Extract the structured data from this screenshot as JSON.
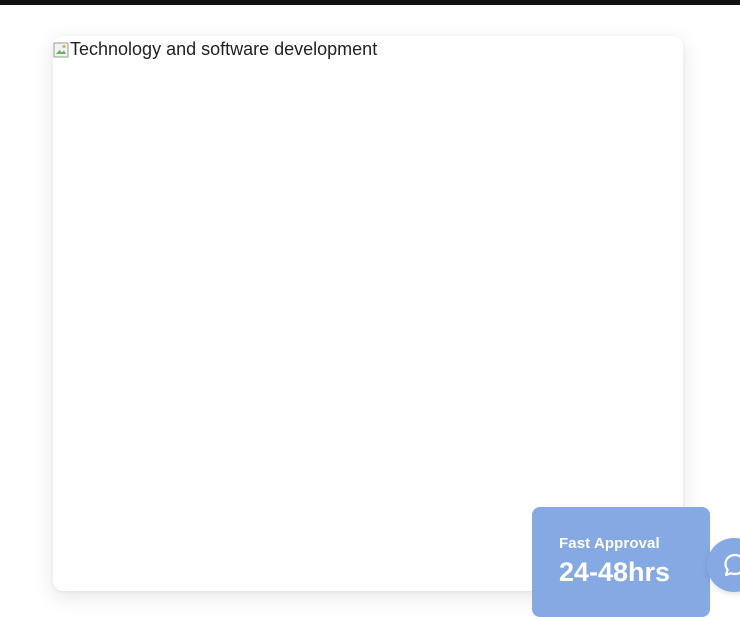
{
  "hero": {
    "image_alt": "Technology and software development"
  },
  "approval": {
    "label": "Fast Approval",
    "value": "24-48hrs"
  },
  "chat": {
    "icon": "chat-bubble-icon"
  },
  "colors": {
    "accent": "#85a9e3",
    "top_bar": "#111111"
  }
}
